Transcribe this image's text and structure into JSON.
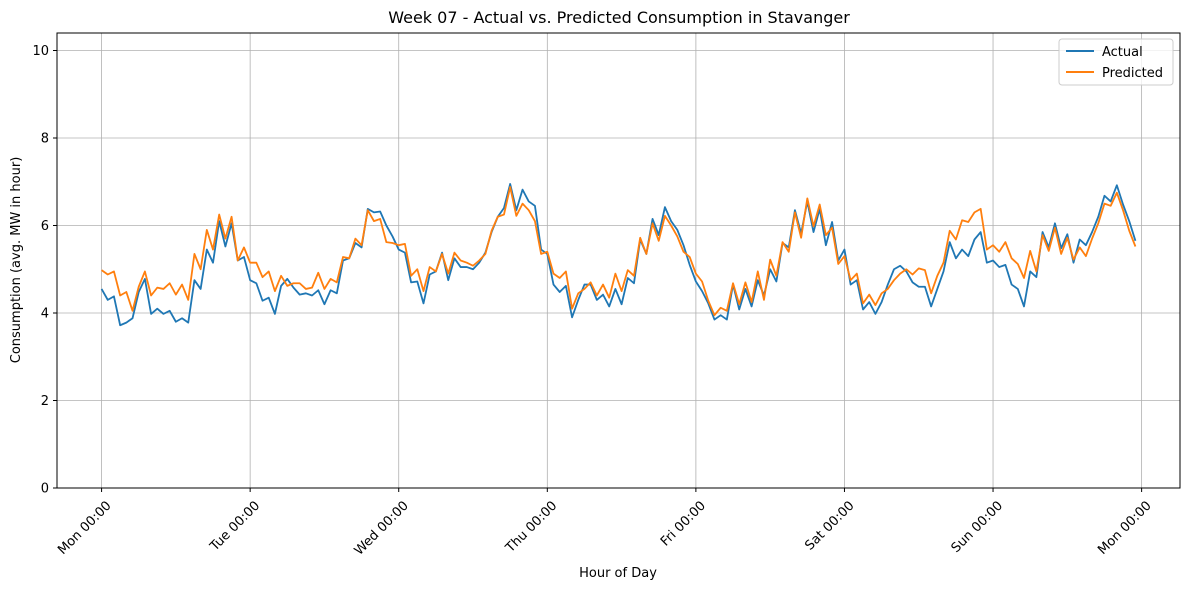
{
  "chart_data": {
    "type": "line",
    "title": "Week 07 - Actual vs. Predicted Consumption in Stavanger",
    "xlabel": "Hour of Day",
    "ylabel": "Consumption (avg. MW in hour)",
    "x_unit": "hours from Mon 00:00",
    "xlim": [
      -7.2,
      174.2
    ],
    "ylim": [
      0,
      10.4
    ],
    "x_ticks": [
      {
        "value": 0,
        "label": "Mon 00:00"
      },
      {
        "value": 24,
        "label": "Tue 00:00"
      },
      {
        "value": 48,
        "label": "Wed 00:00"
      },
      {
        "value": 72,
        "label": "Thu 00:00"
      },
      {
        "value": 96,
        "label": "Fri 00:00"
      },
      {
        "value": 120,
        "label": "Sat 00:00"
      },
      {
        "value": 144,
        "label": "Sun 00:00"
      },
      {
        "value": 168,
        "label": "Mon 00:00"
      }
    ],
    "y_ticks": [
      0,
      2,
      4,
      6,
      8,
      10
    ],
    "grid": true,
    "legend": "top-right",
    "series": [
      {
        "name": "Actual",
        "color": "#1f77b4",
        "x_start": 0,
        "x_step": 1,
        "values": [
          4.55,
          4.3,
          4.38,
          3.72,
          3.78,
          3.88,
          4.48,
          4.78,
          3.98,
          4.1,
          3.98,
          4.05,
          3.8,
          3.88,
          3.78,
          4.75,
          4.55,
          5.45,
          5.15,
          6.1,
          5.52,
          6.05,
          5.2,
          5.28,
          4.75,
          4.68,
          4.28,
          4.35,
          3.98,
          4.62,
          4.78,
          4.58,
          4.42,
          4.45,
          4.4,
          4.52,
          4.2,
          4.52,
          4.45,
          5.2,
          5.25,
          5.6,
          5.5,
          6.38,
          6.3,
          6.32,
          6.0,
          5.75,
          5.45,
          5.38,
          4.7,
          4.72,
          4.22,
          4.88,
          4.95,
          5.38,
          4.75,
          5.25,
          5.05,
          5.05,
          5.0,
          5.15,
          5.38,
          5.85,
          6.2,
          6.4,
          6.95,
          6.35,
          6.82,
          6.55,
          6.45,
          5.45,
          5.35,
          4.65,
          4.48,
          4.62,
          3.9,
          4.3,
          4.65,
          4.65,
          4.3,
          4.42,
          4.15,
          4.55,
          4.2,
          4.8,
          4.68,
          5.68,
          5.35,
          6.15,
          5.78,
          6.42,
          6.1,
          5.9,
          5.55,
          5.1,
          4.72,
          4.5,
          4.22,
          3.85,
          3.95,
          3.85,
          4.65,
          4.08,
          4.55,
          4.15,
          4.75,
          4.4,
          5.0,
          4.72,
          5.6,
          5.5,
          6.35,
          5.82,
          6.55,
          5.85,
          6.38,
          5.55,
          6.08,
          5.2,
          5.45,
          4.65,
          4.75,
          4.08,
          4.25,
          3.98,
          4.25,
          4.65,
          5.0,
          5.08,
          4.95,
          4.7,
          4.6,
          4.6,
          4.15,
          4.55,
          4.95,
          5.62,
          5.25,
          5.45,
          5.3,
          5.68,
          5.85,
          5.15,
          5.2,
          5.05,
          5.1,
          4.65,
          4.55,
          4.15,
          4.95,
          4.82,
          5.85,
          5.5,
          6.05,
          5.48,
          5.8,
          5.15,
          5.68,
          5.55,
          5.85,
          6.2,
          6.68,
          6.55,
          6.92,
          6.48,
          6.1,
          5.65
        ]
      },
      {
        "name": "Predicted",
        "color": "#ff7f0e",
        "x_start": 0,
        "x_step": 1,
        "values": [
          4.98,
          4.88,
          4.95,
          4.4,
          4.48,
          4.05,
          4.6,
          4.95,
          4.4,
          4.58,
          4.55,
          4.68,
          4.42,
          4.65,
          4.3,
          5.35,
          5.0,
          5.9,
          5.45,
          6.25,
          5.7,
          6.2,
          5.2,
          5.5,
          5.15,
          5.15,
          4.82,
          4.95,
          4.5,
          4.85,
          4.62,
          4.68,
          4.68,
          4.55,
          4.58,
          4.92,
          4.55,
          4.78,
          4.7,
          5.28,
          5.25,
          5.7,
          5.55,
          6.35,
          6.1,
          6.15,
          5.62,
          5.6,
          5.55,
          5.58,
          4.85,
          5.0,
          4.5,
          5.05,
          4.95,
          5.35,
          4.9,
          5.38,
          5.2,
          5.15,
          5.08,
          5.2,
          5.35,
          5.88,
          6.2,
          6.25,
          6.88,
          6.22,
          6.5,
          6.35,
          6.1,
          5.35,
          5.4,
          4.9,
          4.8,
          4.95,
          4.1,
          4.45,
          4.55,
          4.7,
          4.4,
          4.65,
          4.35,
          4.9,
          4.5,
          4.98,
          4.85,
          5.72,
          5.35,
          6.05,
          5.65,
          6.22,
          6.0,
          5.75,
          5.4,
          5.28,
          4.9,
          4.72,
          4.28,
          3.95,
          4.12,
          4.05,
          4.68,
          4.2,
          4.7,
          4.25,
          4.95,
          4.3,
          5.22,
          4.85,
          5.62,
          5.4,
          6.3,
          5.72,
          6.62,
          5.98,
          6.48,
          5.78,
          5.95,
          5.12,
          5.3,
          4.75,
          4.9,
          4.22,
          4.42,
          4.18,
          4.45,
          4.55,
          4.75,
          4.9,
          5.0,
          4.88,
          5.02,
          4.98,
          4.45,
          4.85,
          5.15,
          5.88,
          5.68,
          6.12,
          6.08,
          6.3,
          6.38,
          5.45,
          5.55,
          5.4,
          5.62,
          5.25,
          5.12,
          4.8,
          5.42,
          4.95,
          5.78,
          5.42,
          5.95,
          5.35,
          5.72,
          5.22,
          5.5,
          5.3,
          5.7,
          6.05,
          6.5,
          6.45,
          6.75,
          6.35,
          5.88,
          5.52
        ]
      }
    ]
  }
}
